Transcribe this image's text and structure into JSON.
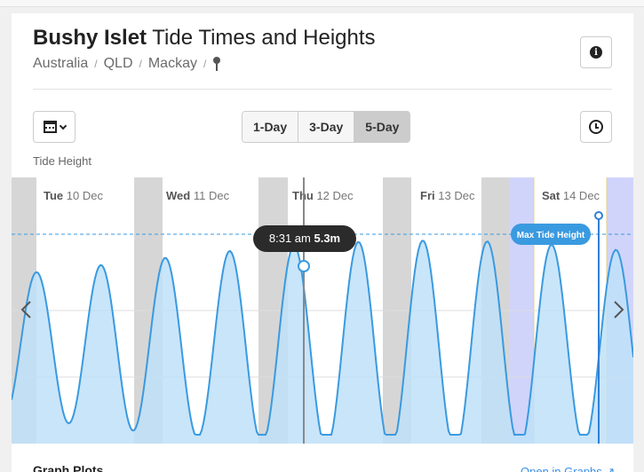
{
  "header": {
    "title_bold": "Bushy Islet",
    "title_rest": "Tide Times and Heights",
    "breadcrumbs": [
      "Australia",
      "QLD",
      "Mackay"
    ],
    "breadcrumb_sep": "/"
  },
  "controls": {
    "tabs": [
      {
        "label": "1-Day",
        "active": false
      },
      {
        "label": "3-Day",
        "active": false
      },
      {
        "label": "5-Day",
        "active": true
      }
    ],
    "tide_height_label": "Tide Height"
  },
  "chart_data": {
    "type": "area",
    "days": [
      {
        "weekday": "Tue",
        "date": "10 Dec"
      },
      {
        "weekday": "Wed",
        "date": "11 Dec"
      },
      {
        "weekday": "Thu",
        "date": "12 Dec"
      },
      {
        "weekday": "Fri",
        "date": "13 Dec"
      },
      {
        "weekday": "Sat",
        "date": "14 Dec"
      }
    ],
    "tooltip": {
      "time": "8:31 am",
      "height": "5.3m"
    },
    "max_badge": "Max Tide Height",
    "fill_color": "#bfe0f8",
    "line_color": "#3a9ae0",
    "night_color": "#d6d6d6",
    "highlight_color": "#d0d4fb"
  },
  "footer": {
    "graph_plots": "Graph Plots",
    "open_link": "Open in Graphs ↗"
  }
}
